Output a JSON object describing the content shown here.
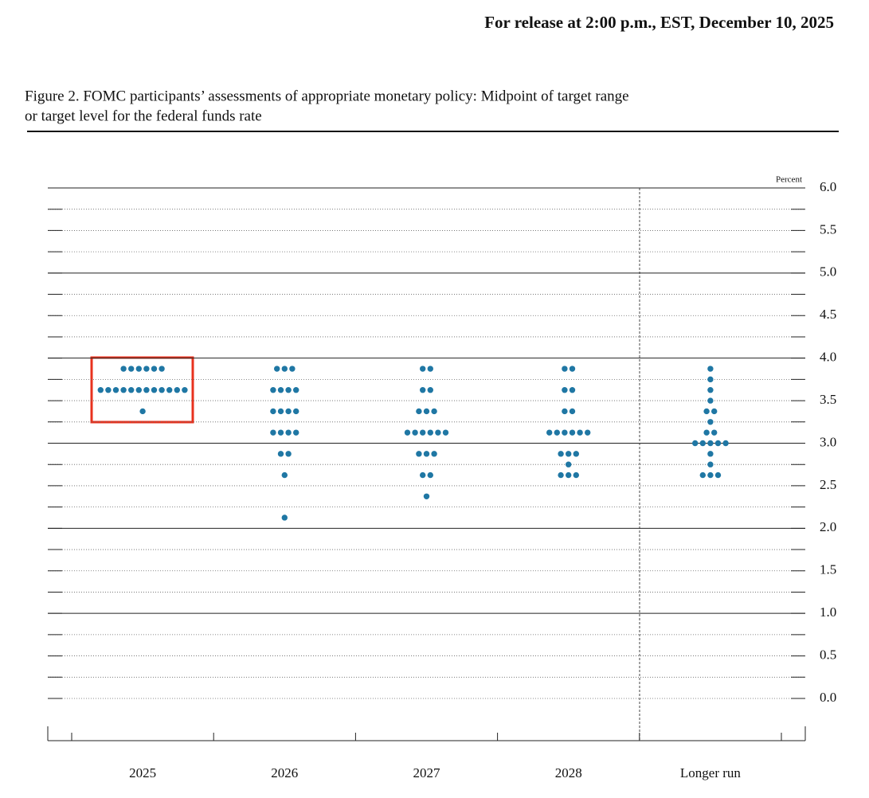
{
  "header": {
    "release": "For release at 2:00 p.m., EST, December 10, 2025"
  },
  "chart_data": {
    "type": "dot",
    "title": [
      "Figure 2. FOMC participants’ assessments of appropriate monetary policy: Midpoint of target range",
      "or target level for the federal funds rate"
    ],
    "y_label": "Percent",
    "categories": [
      "2025",
      "2026",
      "2027",
      "2028",
      "Longer run"
    ],
    "values": [
      [
        3.875,
        3.875,
        3.875,
        3.875,
        3.875,
        3.875,
        3.625,
        3.625,
        3.625,
        3.625,
        3.625,
        3.625,
        3.625,
        3.625,
        3.625,
        3.625,
        3.625,
        3.625,
        3.375
      ],
      [
        3.875,
        3.875,
        3.875,
        3.625,
        3.625,
        3.625,
        3.625,
        3.375,
        3.375,
        3.375,
        3.375,
        3.125,
        3.125,
        3.125,
        3.125,
        2.875,
        2.875,
        2.625,
        2.125
      ],
      [
        3.875,
        3.875,
        3.625,
        3.625,
        3.375,
        3.375,
        3.375,
        3.125,
        3.125,
        3.125,
        3.125,
        3.125,
        3.125,
        2.875,
        2.875,
        2.875,
        2.625,
        2.625,
        2.375
      ],
      [
        3.875,
        3.875,
        3.625,
        3.625,
        3.375,
        3.375,
        3.125,
        3.125,
        3.125,
        3.125,
        3.125,
        3.125,
        2.875,
        2.875,
        2.875,
        2.75,
        2.625,
        2.625,
        2.625
      ],
      [
        3.875,
        3.75,
        3.625,
        3.5,
        3.375,
        3.375,
        3.25,
        3.125,
        3.125,
        3,
        3,
        3,
        3,
        3,
        2.875,
        2.75,
        2.625,
        2.625,
        2.625
      ]
    ],
    "color": "#1f77a4",
    "ylim": [
      0,
      6
    ],
    "yticks": [
      {
        "value": 0,
        "label": "0.0"
      },
      0.5,
      {
        "value": 1,
        "label": "1.0"
      },
      1.5,
      {
        "value": 2,
        "label": "2.0"
      },
      2.5,
      {
        "value": 3,
        "label": "3.0"
      },
      3.5,
      {
        "value": 4,
        "label": "4.0"
      },
      4.5,
      {
        "value": 5,
        "label": "5.0"
      },
      5.5,
      {
        "value": 6,
        "label": "6.0"
      }
    ],
    "minor_yticks": [
      0.25,
      0.75,
      1.25,
      1.75,
      2.25,
      2.75,
      3.25,
      3.75,
      4.25,
      4.75,
      5.25,
      5.75
    ],
    "grid": true
  }
}
